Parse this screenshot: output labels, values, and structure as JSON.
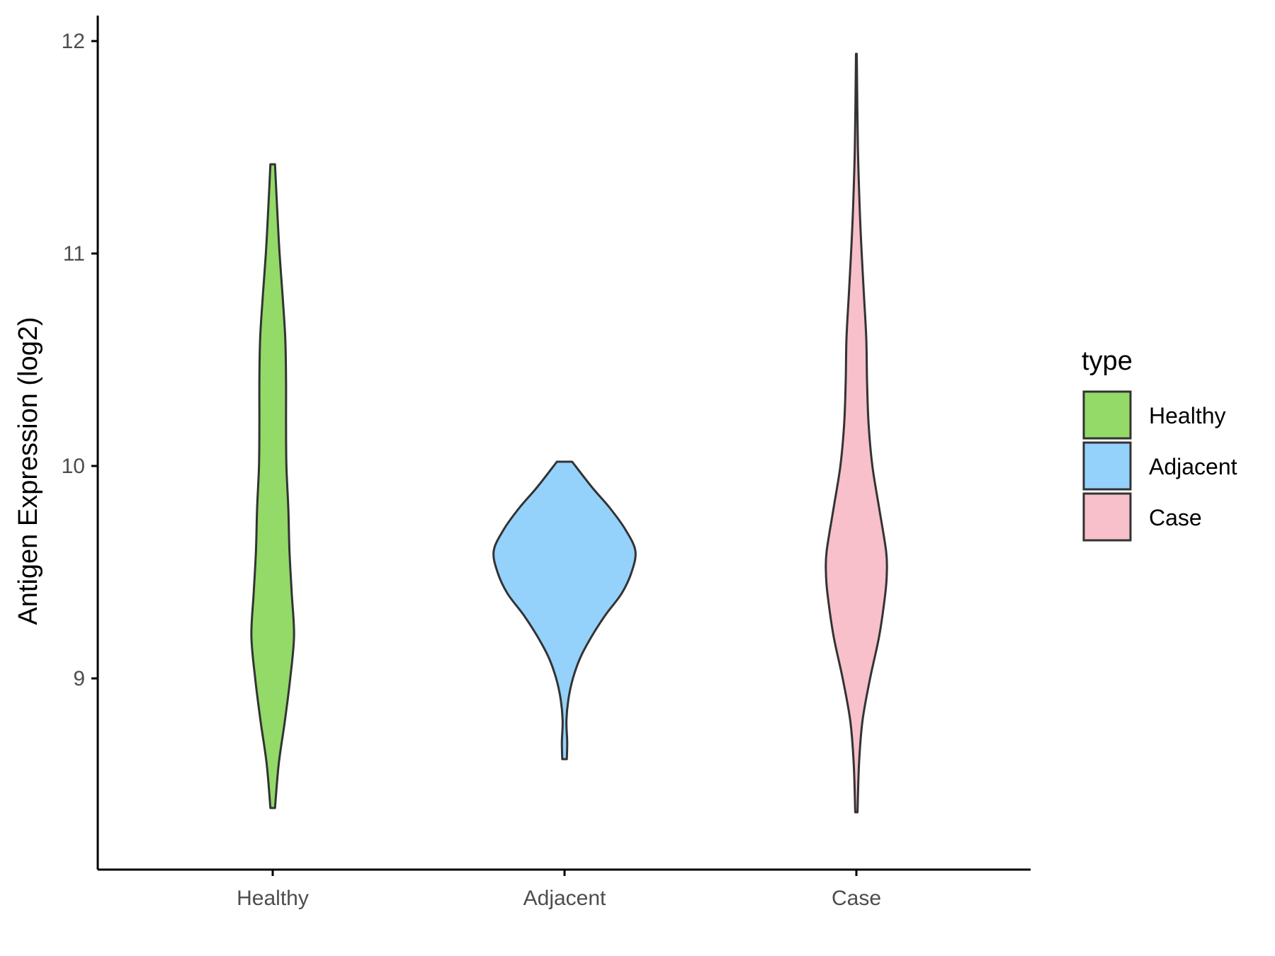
{
  "chart_data": {
    "type": "violin",
    "title": "",
    "xlabel": "",
    "ylabel": "Antigen Expression (log2)",
    "ylim": [
      8.1,
      12.12
    ],
    "yticks": [
      9,
      10,
      11,
      12
    ],
    "categories": [
      "Healthy",
      "Adjacent",
      "Case"
    ],
    "grid": false,
    "legend": {
      "title": "type",
      "placement": "right",
      "entries": [
        {
          "label": "Healthy",
          "color": "#93DA69"
        },
        {
          "label": "Adjacent",
          "color": "#94D2FC"
        },
        {
          "label": "Case",
          "color": "#F7C0CB"
        }
      ]
    },
    "series": [
      {
        "category": "Healthy",
        "color": "#93DA69",
        "min": 8.39,
        "max": 11.42,
        "density_profile": [
          [
            8.39,
            0.06
          ],
          [
            8.6,
            0.16
          ],
          [
            8.8,
            0.32
          ],
          [
            9.0,
            0.46
          ],
          [
            9.2,
            0.56
          ],
          [
            9.4,
            0.5
          ],
          [
            9.6,
            0.44
          ],
          [
            9.8,
            0.41
          ],
          [
            10.0,
            0.36
          ],
          [
            10.2,
            0.35
          ],
          [
            10.4,
            0.35
          ],
          [
            10.6,
            0.33
          ],
          [
            10.8,
            0.26
          ],
          [
            11.0,
            0.18
          ],
          [
            11.2,
            0.12
          ],
          [
            11.42,
            0.06
          ]
        ]
      },
      {
        "category": "Adjacent",
        "color": "#94D2FC",
        "min": 8.62,
        "max": 10.02,
        "density_profile": [
          [
            8.62,
            0.06
          ],
          [
            8.7,
            0.07
          ],
          [
            8.8,
            0.05
          ],
          [
            8.9,
            0.1
          ],
          [
            9.0,
            0.22
          ],
          [
            9.1,
            0.42
          ],
          [
            9.2,
            0.72
          ],
          [
            9.3,
            1.08
          ],
          [
            9.4,
            1.5
          ],
          [
            9.5,
            1.76
          ],
          [
            9.6,
            1.86
          ],
          [
            9.7,
            1.6
          ],
          [
            9.8,
            1.2
          ],
          [
            9.9,
            0.72
          ],
          [
            10.02,
            0.2
          ]
        ]
      },
      {
        "category": "Case",
        "color": "#F7C0CB",
        "min": 8.37,
        "max": 11.94,
        "density_profile": [
          [
            8.37,
            0.03
          ],
          [
            8.6,
            0.07
          ],
          [
            8.8,
            0.16
          ],
          [
            9.0,
            0.36
          ],
          [
            9.2,
            0.6
          ],
          [
            9.4,
            0.76
          ],
          [
            9.5,
            0.8
          ],
          [
            9.6,
            0.78
          ],
          [
            9.8,
            0.6
          ],
          [
            10.0,
            0.42
          ],
          [
            10.2,
            0.32
          ],
          [
            10.4,
            0.28
          ],
          [
            10.6,
            0.26
          ],
          [
            10.8,
            0.2
          ],
          [
            11.0,
            0.14
          ],
          [
            11.2,
            0.09
          ],
          [
            11.5,
            0.04
          ],
          [
            11.94,
            0.01
          ]
        ]
      }
    ]
  }
}
